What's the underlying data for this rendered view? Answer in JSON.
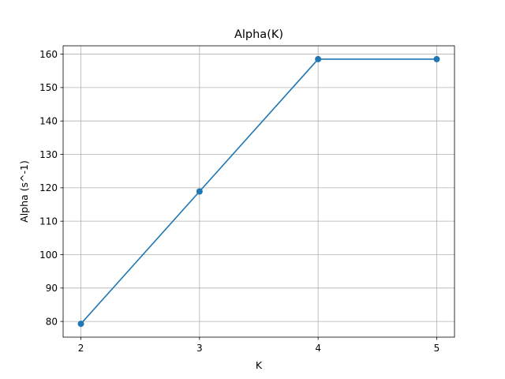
{
  "chart_data": {
    "type": "line",
    "title": "Alpha(K)",
    "xlabel": "K",
    "ylabel": "Alpha (s^-1)",
    "x": [
      2,
      3,
      4,
      5
    ],
    "series": [
      {
        "values": [
          79.3,
          118.9,
          158.5,
          158.5
        ],
        "color": "#1f77b4",
        "markers": true
      }
    ],
    "xticks": [
      2,
      3,
      4,
      5
    ],
    "yticks": [
      80,
      90,
      100,
      110,
      120,
      130,
      140,
      150,
      160
    ],
    "xlim": [
      1.85,
      5.15
    ],
    "ylim": [
      75.3,
      162.5
    ],
    "grid": true
  }
}
